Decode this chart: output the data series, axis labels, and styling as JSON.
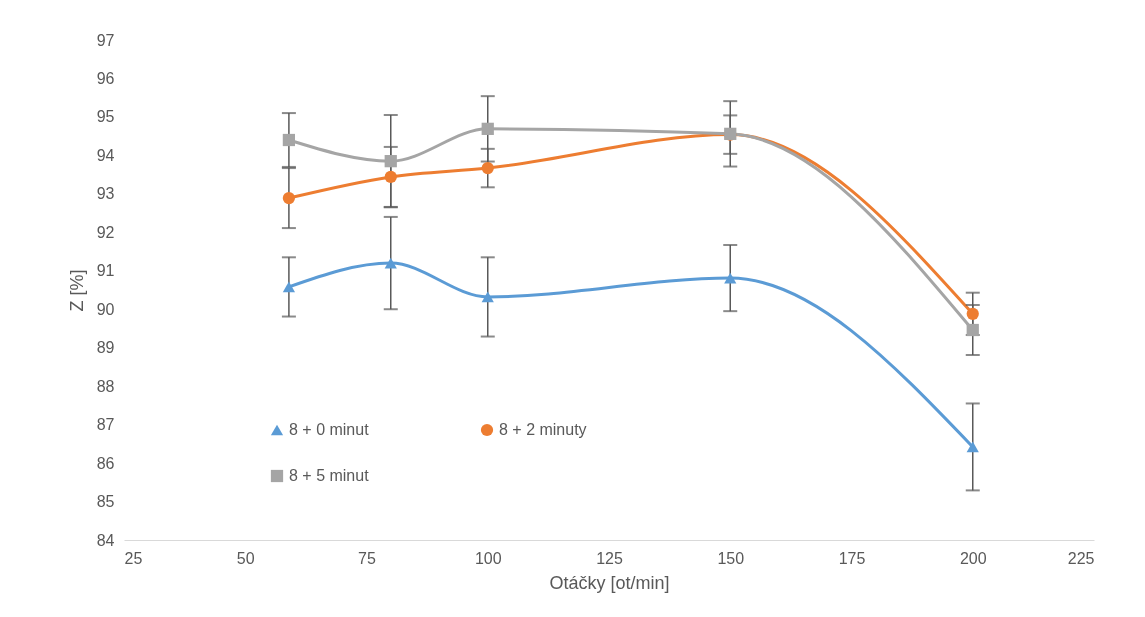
{
  "chart_data": {
    "type": "line",
    "xlabel": "Otáčky [ot/min]",
    "ylabel": "Z [%]",
    "x": [
      59,
      80,
      100,
      150,
      200
    ],
    "series": [
      {
        "name": "8 + 0 minut",
        "color": "#5b9bd5",
        "marker": "triangle",
        "values": [
          90.58,
          91.2,
          90.32,
          90.81,
          86.42
        ],
        "errors": [
          0.77,
          1.2,
          1.03,
          0.86,
          1.13
        ]
      },
      {
        "name": "8 + 2 minuty",
        "color": "#ed7d31",
        "marker": "circle",
        "values": [
          92.89,
          93.44,
          93.67,
          94.54,
          89.88
        ],
        "errors": [
          0.78,
          0.78,
          0.5,
          0.5,
          0.55
        ]
      },
      {
        "name": "8 + 5 minut",
        "color": "#a5a5a5",
        "marker": "square",
        "values": [
          94.4,
          93.85,
          94.69,
          94.56,
          89.46
        ],
        "errors": [
          0.7,
          1.2,
          0.85,
          0.85,
          0.65
        ]
      }
    ],
    "xlim": [
      25,
      225
    ],
    "xticks": [
      25,
      50,
      75,
      100,
      125,
      150,
      175,
      200,
      225
    ],
    "ylim": [
      84,
      97
    ],
    "yticks": [
      84,
      85,
      86,
      87,
      88,
      89,
      90,
      91,
      92,
      93,
      94,
      95,
      96,
      97
    ],
    "grid": false,
    "legend": "bottom left",
    "line_style": "solid"
  }
}
